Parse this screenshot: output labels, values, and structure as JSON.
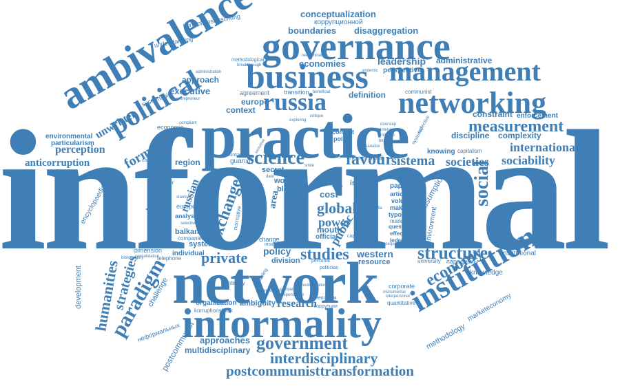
{
  "words": {
    "informal": "informal",
    "network": "network",
    "practice": "practice",
    "informality": "informality",
    "governance": "governance",
    "business": "business",
    "management": "management",
    "networking": "networking",
    "ambivalence": "ambivalence",
    "political": "political",
    "russia": "russia",
    "institution": "institution",
    "government": "government",
    "interdisciplinary": "interdisciplinary",
    "postcommunisttransformation": "postcommunisttransformation",
    "science": "science",
    "favour": "favour",
    "sistema": "sistema",
    "societies": "societies",
    "sociability": "sociability",
    "measurement": "measurement",
    "international": "international",
    "structure": "structure",
    "economy": "economy",
    "studies": "studies",
    "private": "private",
    "paradigm": "paradigm",
    "strategies": "strategies",
    "humanities": "humanities",
    "global": "global",
    "power": "power",
    "exchange": "exchange",
    "social": "social",
    "research": "research",
    "perception": "perception",
    "anticorruption": "anticorruption",
    "formal": "formal",
    "unwritten": "unwritten",
    "economies": "economies",
    "leadership": "leadership",
    "administrative": "administrative",
    "conceptualization": "conceptualization",
    "boundaries": "boundaries",
    "disaggregation": "disaggregation",
    "executive": "executive",
    "approach": "approach",
    "europe": "europe",
    "context": "context",
    "agreement": "agreement",
    "definition": "definition",
    "constraint": "constraint",
    "enforcement": "enforcement",
    "complexity": "complexity",
    "discipline": "discipline",
    "western": "western",
    "resource": "resource",
    "division": "division",
    "policy": "policy",
    "approaches": "approaches",
    "multidisciplinary": "multidisciplinary",
    "postcommunist": "postcommunist",
    "development": "development",
    "challenge": "challenge",
    "methodology": "methodology",
    "marketeconomy": "marketeconomy",
    "knowledge": "knowledge",
    "institutional": "institutional",
    "russian": "russian",
    "instrumentality": "instrumentality",
    "encyclopaedia": "encyclopaedia",
    "environmental": "environmental",
    "particularism": "particularism",
    "understanding": "understanding",
    "korruptionsforschung": "korruptionsforschung",
    "korruption_ru": "коррупционной",
    "region": "region",
    "system": "system",
    "individual": "individual",
    "balkan": "balkan",
    "companies": "companies",
    "analysis": "analysis",
    "european": "european",
    "organization": "organization",
    "ambiguity": "ambiguity",
    "korruptionskritik": "korruptionskritik",
    "continuity": "continuity",
    "mouth": "mouth",
    "official": "official",
    "change": "change",
    "cost": "cost",
    "public": "public",
    "assumption": "assumption",
    "environment": "environment",
    "sustainable": "sustainable",
    "economic": "economic",
    "guanxi": "guanxi",
    "secret": "secret",
    "word": "word",
    "blat": "blat",
    "area": "area",
    "issue": "issue",
    "paper": "paper",
    "article": "article",
    "volume": "volume",
    "making": "making",
    "typology": "typology",
    "market": "market",
    "question": "question",
    "effective": "effective",
    "ledeneva": "ledeneva",
    "knowing": "knowing",
    "capitalism": "capitalism",
    "perspective": "perspective",
    "communist": "communist",
    "transition": "transition",
    "contact": "contact",
    "politic": "politic",
    "money": "money",
    "moral": "moral",
    "normative": "normative",
    "dimension": "dimension",
    "telephone": "telephone",
    "nephormal_ru": "неформальных",
    "paradigm_ru": "парадигмы",
    "corporate": "corporate",
    "quantitative": "quantitative",
    "agencies": "agencies",
    "methodological": "methodological",
    "reexamination": "reexamination",
    "endemic": "endemic",
    "collective": "collective",
    "systemic": "systemic",
    "corruption": "corruption",
    "outsider": "outsider",
    "bibliography": "bibliography",
    "conceptual": "conceptual",
    "consolidation": "consolidation",
    "stanford": "stanford",
    "selective": "selective",
    "insider": "insider",
    "personal": "personal",
    "politician": "politician",
    "capital": "capital",
    "consequence": "consequence",
    "university": "university",
    "reform": "reform",
    "operate": "operate",
    "unquestioned": "unquestioned",
    "instrumental": "instrumental",
    "interpersonal": "interpersonal",
    "corruption_ru": "коррупции",
    "nepotism_ru": "непотизм",
    "breakthrough": "breakthrough",
    "beneficial": "beneficial",
    "administration": "administration",
    "entrepreneur": "entrepreneur",
    "compliant": "compliant",
    "mitigate": "mitigate",
    "blurred": "blurred",
    "critique": "critique",
    "countrie": "countrie",
    "smile": "smile",
    "date": "date",
    "time": "time",
    "thing": "thing",
    "deals": "deals",
    "cases": "cases",
    "sensitive": "sensitive",
    "society": "society",
    "doorstep": "doorstep",
    "interview": "interview",
    "paradox": "paradox",
    "exploring": "exploring",
    "comparison": "comparison",
    "dependence": "dependence",
    "entrepreneurial": "entrepreneurial",
    "modernization": "modernization",
    "mafia": "mafia",
    "enabling": "enabling",
    "trust": "trust"
  },
  "colors": {
    "accent": "#3f7fb6",
    "background": "#ffffff"
  }
}
